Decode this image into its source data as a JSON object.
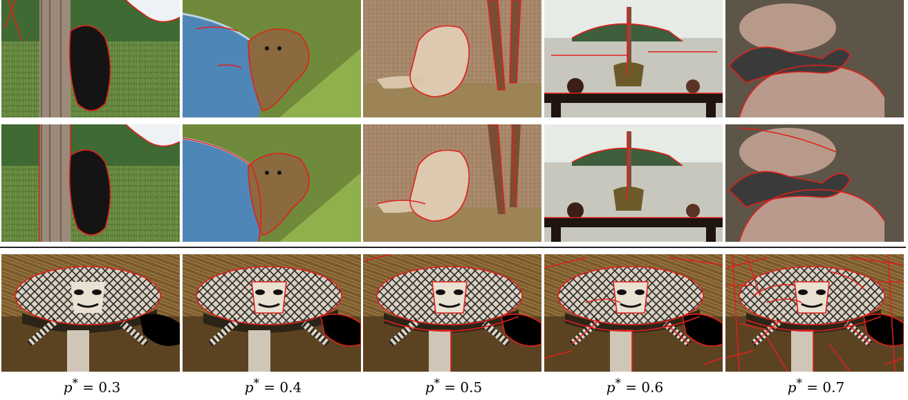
{
  "rows": [
    {
      "name": "row-1",
      "panels": [
        "bear-tree",
        "bear-river",
        "lioness",
        "table-harbor",
        "squirrel"
      ]
    },
    {
      "name": "row-2",
      "panels": [
        "bear-tree",
        "bear-river",
        "lioness",
        "table-harbor",
        "squirrel"
      ]
    },
    {
      "name": "row-3",
      "panels": [
        "mask",
        "mask",
        "mask",
        "mask",
        "mask"
      ]
    }
  ],
  "captions": [
    {
      "var": "p",
      "sup": "*",
      "rest": " = 0.3"
    },
    {
      "var": "p",
      "sup": "*",
      "rest": " = 0.4"
    },
    {
      "var": "p",
      "sup": "*",
      "rest": " = 0.5"
    },
    {
      "var": "p",
      "sup": "*",
      "rest": " = 0.6"
    },
    {
      "var": "p",
      "sup": "*",
      "rest": " = 0.7"
    }
  ],
  "colors": {
    "contour": "#e0201b"
  }
}
